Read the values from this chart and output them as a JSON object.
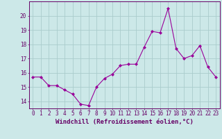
{
  "x": [
    0,
    1,
    2,
    3,
    4,
    5,
    6,
    7,
    8,
    9,
    10,
    11,
    12,
    13,
    14,
    15,
    16,
    17,
    18,
    19,
    20,
    21,
    22,
    23
  ],
  "y": [
    15.7,
    15.7,
    15.1,
    15.1,
    14.8,
    14.5,
    13.8,
    13.7,
    15.0,
    15.6,
    15.9,
    16.5,
    16.6,
    16.6,
    17.8,
    18.9,
    18.8,
    20.5,
    17.7,
    17.0,
    17.2,
    17.9,
    16.4,
    15.7
  ],
  "line_color": "#990099",
  "marker": "D",
  "marker_size": 2,
  "bg_color": "#cce8e8",
  "grid_color": "#aacccc",
  "axis_color": "#660066",
  "xlabel": "Windchill (Refroidissement éolien,°C)",
  "ylim": [
    13.5,
    21.0
  ],
  "xlim": [
    -0.5,
    23.5
  ],
  "yticks": [
    14,
    15,
    16,
    17,
    18,
    19,
    20
  ],
  "xticks": [
    0,
    1,
    2,
    3,
    4,
    5,
    6,
    7,
    8,
    9,
    10,
    11,
    12,
    13,
    14,
    15,
    16,
    17,
    18,
    19,
    20,
    21,
    22,
    23
  ],
  "tick_fontsize": 5.5,
  "label_fontsize": 6.5
}
